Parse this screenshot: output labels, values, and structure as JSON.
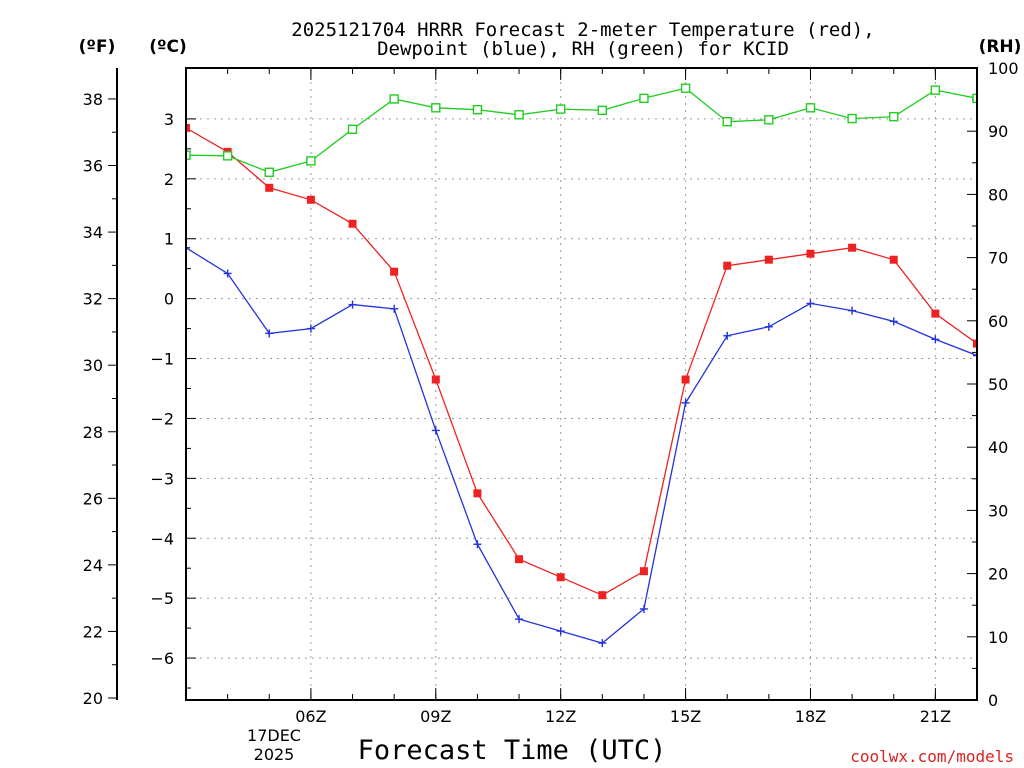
{
  "chart_data": {
    "type": "line",
    "title_line1": "2025121704 HRRR Forecast 2-meter Temperature (red),",
    "title_line2": "Dewpoint (blue), RH (green) for KCID",
    "xlabel": "Forecast Time (UTC)",
    "watermark": "coolwx.com/models",
    "unit_f": "(ºF)",
    "unit_c": "(ºC)",
    "unit_rh": "(RH)",
    "date_day": "17DEC",
    "date_year": "2025",
    "x_hours": [
      3,
      4,
      5,
      6,
      7,
      8,
      9,
      10,
      11,
      12,
      13,
      14,
      15,
      16,
      17,
      18,
      19,
      20,
      21,
      22
    ],
    "xlim": [
      3,
      22
    ],
    "x_ticks": [
      {
        "hour": 6,
        "label": "06Z"
      },
      {
        "hour": 9,
        "label": "09Z"
      },
      {
        "hour": 12,
        "label": "12Z"
      },
      {
        "hour": 15,
        "label": "15Z"
      },
      {
        "hour": 18,
        "label": "18Z"
      },
      {
        "hour": 21,
        "label": "21Z"
      }
    ],
    "celsius_ticks": [
      "3",
      "2",
      "1",
      "0",
      "−1",
      "−2",
      "−3",
      "−4",
      "−5",
      "−6"
    ],
    "celsius_tick_values": [
      3,
      2,
      1,
      0,
      -1,
      -2,
      -3,
      -4,
      -5,
      -6
    ],
    "fahrenheit_ticks": [
      "38",
      "36",
      "34",
      "32",
      "30",
      "28",
      "26",
      "24",
      "22",
      "20"
    ],
    "fahrenheit_tick_values": [
      38,
      36,
      34,
      32,
      30,
      28,
      26,
      24,
      22,
      20
    ],
    "rh_ticks": [
      "100",
      "90",
      "80",
      "70",
      "60",
      "50",
      "40",
      "30",
      "20",
      "10",
      "0"
    ],
    "rh_tick_values": [
      100,
      90,
      80,
      70,
      60,
      50,
      40,
      30,
      20,
      10,
      0
    ],
    "ylim_celsius": [
      -6.7,
      3.85
    ],
    "ylim_rh": [
      0,
      100
    ],
    "series": [
      {
        "name": "Temperature",
        "color": "#ee2222",
        "marker": "square-filled",
        "axis": "celsius",
        "values": [
          2.85,
          2.45,
          1.85,
          1.65,
          1.25,
          0.45,
          -1.35,
          -3.25,
          -4.35,
          -4.65,
          -4.95,
          -4.55,
          -1.35,
          0.55,
          0.65,
          0.75,
          0.85,
          0.65,
          -0.25,
          -0.75
        ]
      },
      {
        "name": "Dewpoint",
        "color": "#2233dd",
        "marker": "plus",
        "axis": "celsius",
        "values": [
          0.85,
          0.42,
          -0.58,
          -0.5,
          -0.1,
          -0.17,
          -2.2,
          -4.1,
          -5.35,
          -5.55,
          -5.75,
          -5.18,
          -1.74,
          -0.62,
          -0.47,
          -0.08,
          -0.2,
          -0.38,
          -0.68,
          -0.95
        ]
      },
      {
        "name": "RH",
        "color": "#22cc22",
        "marker": "square-open",
        "axis": "rh",
        "values": [
          86.2,
          86.1,
          83.5,
          85.3,
          90.3,
          95.1,
          93.7,
          93.4,
          92.6,
          93.5,
          93.3,
          95.2,
          96.8,
          91.5,
          91.8,
          93.7,
          92.0,
          92.3,
          96.5,
          95.2
        ]
      }
    ]
  }
}
